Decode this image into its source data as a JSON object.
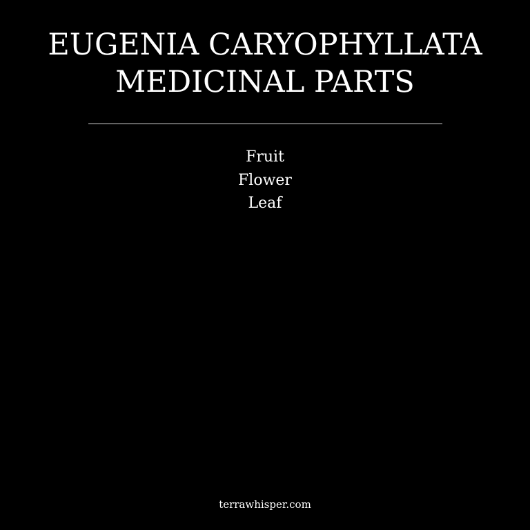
{
  "title": {
    "line1": "EUGENIA CARYOPHYLLATA",
    "line2": "MEDICINAL PARTS"
  },
  "parts": [
    "Fruit",
    "Flower",
    "Leaf"
  ],
  "footer": {
    "site": "terrawhisper.com"
  },
  "colors": {
    "background": "#000000",
    "text": "#ffffff"
  }
}
